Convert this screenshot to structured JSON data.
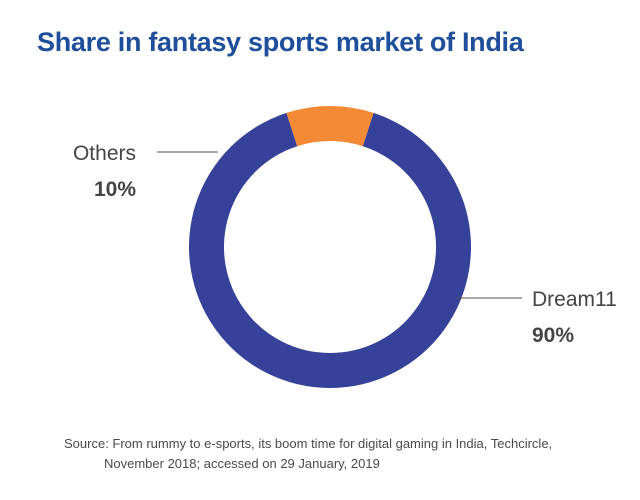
{
  "chart_data": {
    "type": "pie",
    "style": "donut",
    "title": "Share in fantasy sports market of India",
    "categories": [
      "Dream11",
      "Others"
    ],
    "values": [
      90,
      10
    ],
    "value_labels": [
      "90%",
      "10%"
    ],
    "colors": [
      "#36429a",
      "#f48a36"
    ],
    "source": {
      "line1": "Source: From rummy to e-sports, its boom time for digital gaming in India, Techcircle,",
      "line2": "November 2018; accessed on 29 January, 2019"
    }
  },
  "colors": {
    "title": "#1f4e9a",
    "leader_line": "#555555",
    "label_text": "#444444"
  }
}
